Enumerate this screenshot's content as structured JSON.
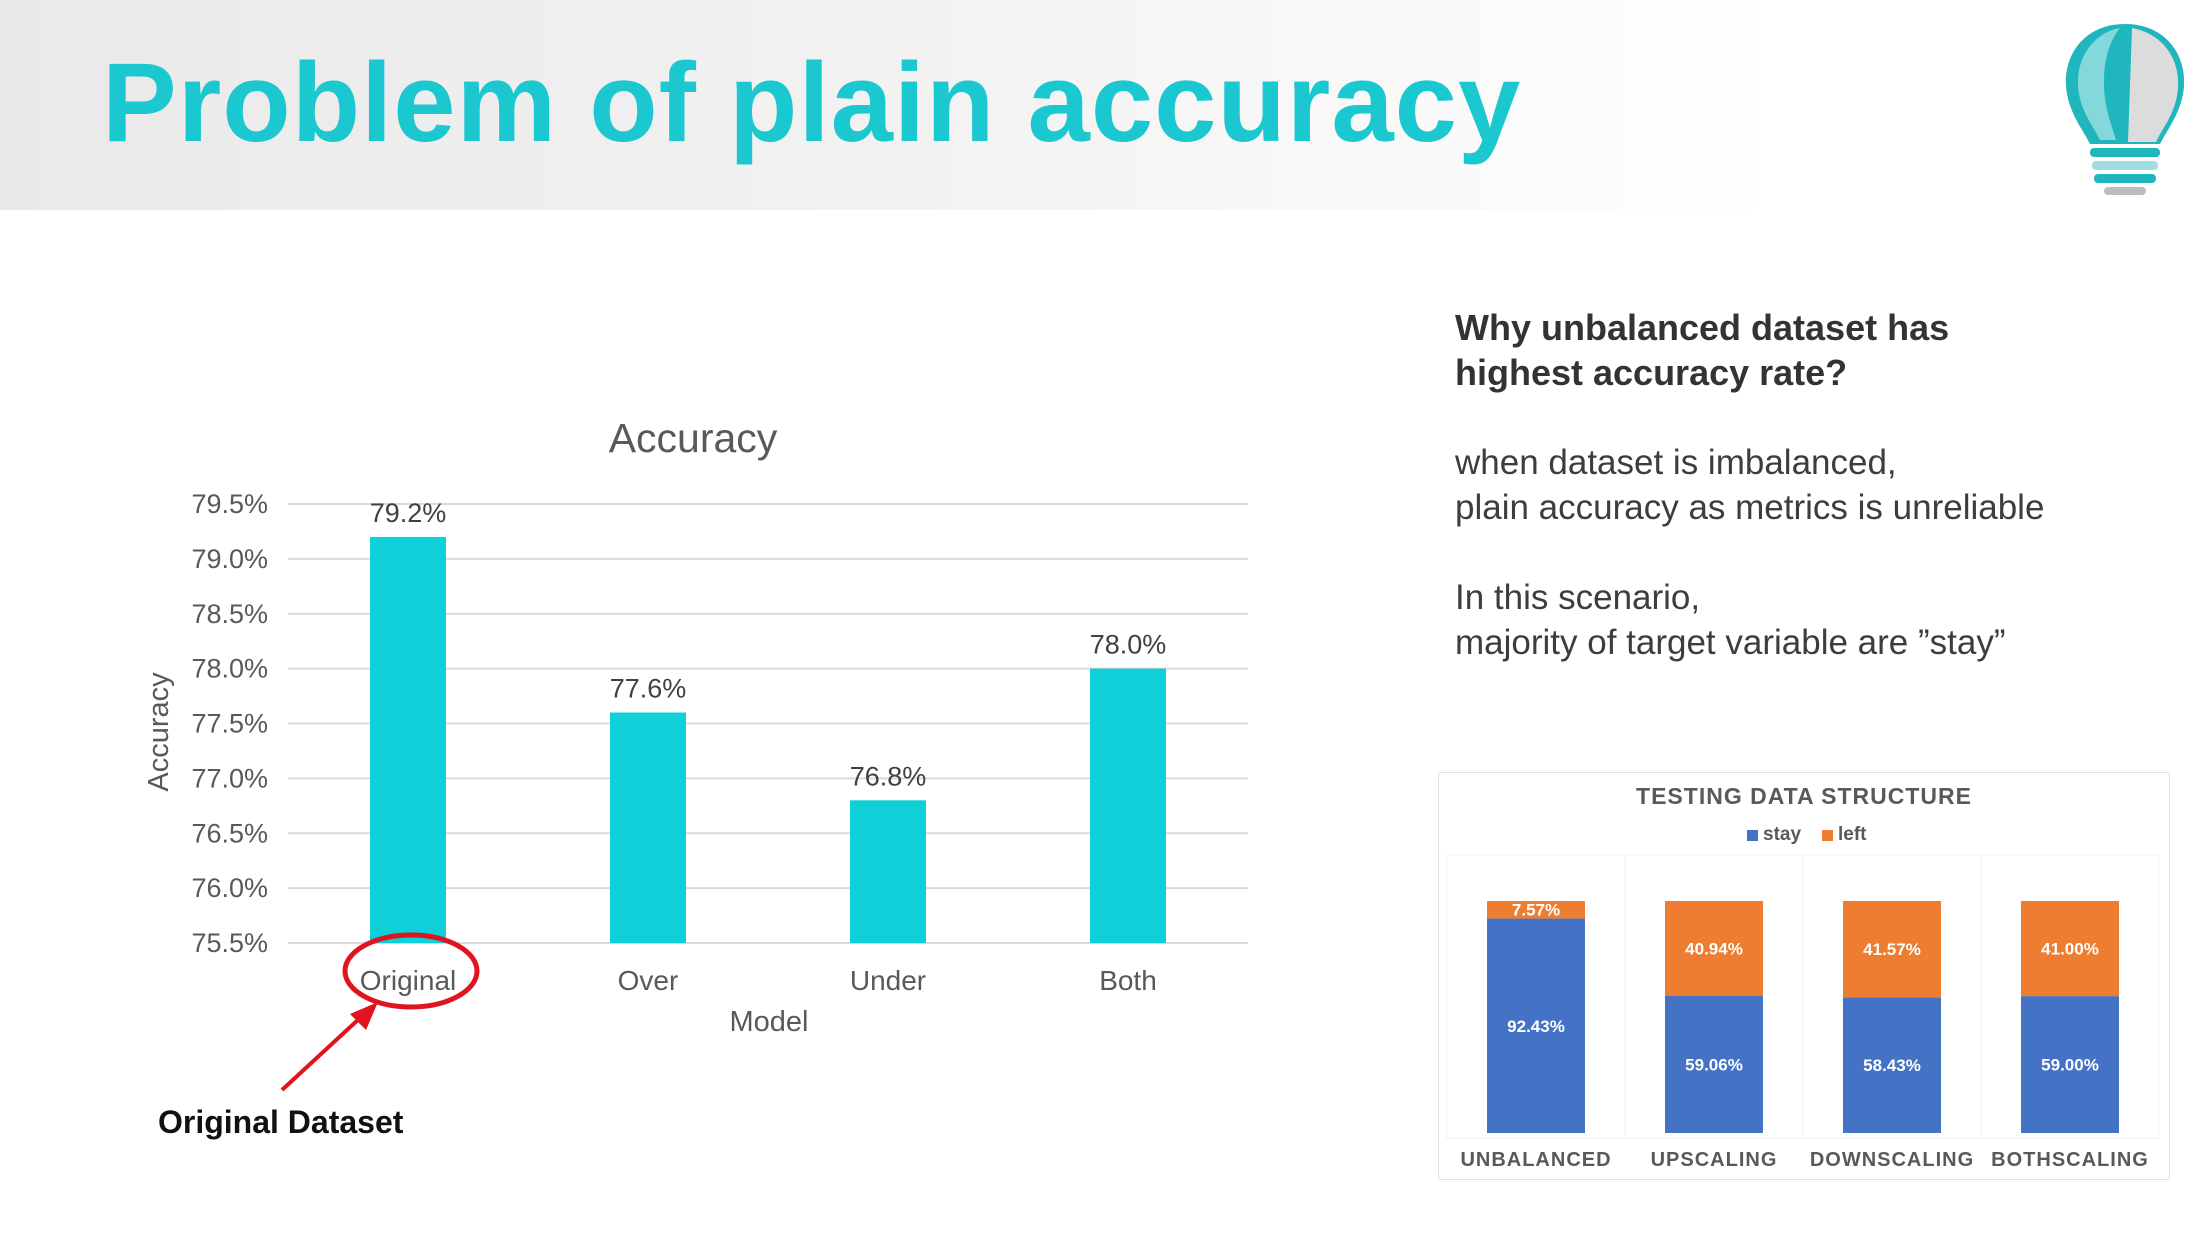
{
  "slide": {
    "title": "Problem of plain accuracy",
    "logo_icon": "lightbulb-icon",
    "annotation_label": "Original Dataset",
    "annotation_circle_color": "#e0141e",
    "accent_color": "#1bc8cf"
  },
  "side_text": {
    "question": "Why unbalanced dataset has\nhighest accuracy rate?",
    "paragraph1": "when dataset is imbalanced,\nplain accuracy as metrics is unreliable",
    "paragraph2": "In this scenario,\nmajority of target variable are ”stay”"
  },
  "chart_data": [
    {
      "type": "bar",
      "title": "Accuracy",
      "xlabel": "Model",
      "ylabel": "Accuracy",
      "categories": [
        "Original",
        "Over",
        "Under",
        "Both"
      ],
      "values": [
        79.2,
        77.6,
        76.8,
        78.0
      ],
      "value_labels": [
        "79.2%",
        "77.6%",
        "76.8%",
        "78.0%"
      ],
      "ylim": [
        75.5,
        79.5
      ],
      "yticks": [
        75.5,
        76.0,
        76.5,
        77.0,
        77.5,
        78.0,
        78.5,
        79.0,
        79.5
      ],
      "ytick_labels": [
        "75.5%",
        "76.0%",
        "76.5%",
        "77.0%",
        "77.5%",
        "78.0%",
        "78.5%",
        "79.0%",
        "79.5%"
      ],
      "grid": true,
      "color": "#0fcfd8"
    },
    {
      "type": "bar",
      "stacked": true,
      "title": "TESTING DATA STRUCTURE",
      "categories": [
        "UNBALANCED",
        "UPSCALING",
        "DOWNSCALING",
        "BOTHSCALING"
      ],
      "series": [
        {
          "name": "stay",
          "values": [
            92.43,
            59.06,
            58.43,
            59.0
          ],
          "labels": [
            "92.43%",
            "59.06%",
            "58.43%",
            "59.00%"
          ],
          "color": "#4472c4"
        },
        {
          "name": "left",
          "values": [
            7.57,
            40.94,
            41.57,
            41.0
          ],
          "labels": [
            "7.57%",
            "40.94%",
            "41.57%",
            "41.00%"
          ],
          "color": "#ed7d31"
        }
      ],
      "ylim": [
        0,
        100
      ],
      "legend": "top"
    }
  ]
}
